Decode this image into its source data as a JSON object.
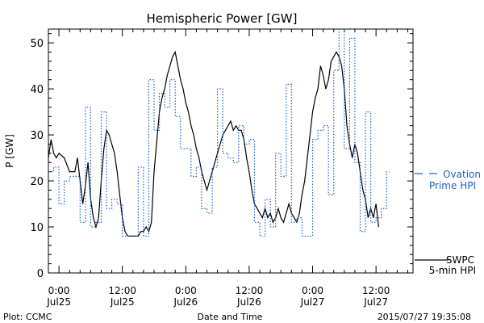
{
  "chart_data": {
    "type": "line",
    "title": "Hemispheric Power [GW]",
    "ylabel": "P [GW]",
    "xlabel": "Date and Time",
    "ylim": [
      0,
      53
    ],
    "yticks": [
      0,
      10,
      20,
      30,
      40,
      50
    ],
    "x_unit": "hours since 2015-07-24 22:00",
    "xlim": [
      0,
      69
    ],
    "xticks": [
      {
        "x": 2,
        "time": "0:00",
        "date": "Jul25"
      },
      {
        "x": 14,
        "time": "12:00",
        "date": "Jul25"
      },
      {
        "x": 26,
        "time": "0:00",
        "date": "Jul26"
      },
      {
        "x": 38,
        "time": "12:00",
        "date": "Jul26"
      },
      {
        "x": 50,
        "time": "0:00",
        "date": "Jul27"
      },
      {
        "x": 62,
        "time": "12:00",
        "date": "Jul27"
      }
    ],
    "series": [
      {
        "name": "SWPC 5-min HPI",
        "style": "solid",
        "color": "#000000",
        "points": [
          [
            0,
            25
          ],
          [
            0.5,
            29
          ],
          [
            1,
            26
          ],
          [
            1.5,
            25
          ],
          [
            2,
            26
          ],
          [
            3,
            25
          ],
          [
            4,
            22
          ],
          [
            5,
            22
          ],
          [
            5.5,
            25
          ],
          [
            6,
            20
          ],
          [
            6.5,
            15
          ],
          [
            7,
            19
          ],
          [
            7.5,
            24
          ],
          [
            8,
            16
          ],
          [
            8.5,
            12
          ],
          [
            9,
            10
          ],
          [
            9.5,
            12
          ],
          [
            10,
            20
          ],
          [
            10.5,
            27
          ],
          [
            11,
            31
          ],
          [
            11.5,
            30
          ],
          [
            12,
            28
          ],
          [
            12.5,
            26
          ],
          [
            13,
            22
          ],
          [
            13.5,
            17
          ],
          [
            14,
            12
          ],
          [
            14.5,
            9
          ],
          [
            15,
            8
          ],
          [
            16,
            8
          ],
          [
            17,
            8
          ],
          [
            17.5,
            9
          ],
          [
            18,
            9
          ],
          [
            18.5,
            10
          ],
          [
            19,
            9
          ],
          [
            19.5,
            11
          ],
          [
            20,
            22
          ],
          [
            21,
            35
          ],
          [
            21.5,
            38
          ],
          [
            22,
            40
          ],
          [
            22.5,
            43
          ],
          [
            23,
            45
          ],
          [
            23.5,
            47
          ],
          [
            24,
            48
          ],
          [
            24.5,
            45
          ],
          [
            25,
            42
          ],
          [
            25.5,
            40
          ],
          [
            26,
            37
          ],
          [
            26.5,
            35
          ],
          [
            27,
            32
          ],
          [
            27.5,
            30
          ],
          [
            28,
            27
          ],
          [
            28.5,
            25
          ],
          [
            29,
            22
          ],
          [
            29.5,
            20
          ],
          [
            30,
            18
          ],
          [
            30.5,
            20
          ],
          [
            31,
            22
          ],
          [
            31.5,
            24
          ],
          [
            32,
            26
          ],
          [
            32.5,
            28
          ],
          [
            33,
            30
          ],
          [
            33.5,
            31
          ],
          [
            34,
            32
          ],
          [
            34.5,
            33
          ],
          [
            35,
            31
          ],
          [
            35.5,
            32
          ],
          [
            36,
            31
          ],
          [
            36.5,
            31
          ],
          [
            37,
            29
          ],
          [
            37.5,
            25
          ],
          [
            38,
            22
          ],
          [
            38.5,
            18
          ],
          [
            39,
            15
          ],
          [
            39.5,
            14
          ],
          [
            40,
            13
          ],
          [
            40.5,
            12
          ],
          [
            41,
            14
          ],
          [
            41.5,
            12
          ],
          [
            42,
            13
          ],
          [
            42.5,
            11
          ],
          [
            43,
            12
          ],
          [
            43.5,
            14
          ],
          [
            44,
            12
          ],
          [
            44.5,
            11
          ],
          [
            45,
            13
          ],
          [
            45.5,
            15
          ],
          [
            46,
            13
          ],
          [
            46.5,
            12
          ],
          [
            47,
            11
          ],
          [
            47.5,
            13
          ],
          [
            48,
            17
          ],
          [
            48.5,
            20
          ],
          [
            49,
            25
          ],
          [
            49.5,
            30
          ],
          [
            50,
            35
          ],
          [
            50.5,
            38
          ],
          [
            51,
            40
          ],
          [
            51.5,
            45
          ],
          [
            52,
            43
          ],
          [
            52.5,
            40
          ],
          [
            53,
            42
          ],
          [
            53.5,
            46
          ],
          [
            54,
            47
          ],
          [
            54.5,
            48
          ],
          [
            55,
            47
          ],
          [
            55.5,
            45
          ],
          [
            56,
            40
          ],
          [
            56.5,
            32
          ],
          [
            57,
            28
          ],
          [
            57.5,
            25
          ],
          [
            58,
            28
          ],
          [
            58.5,
            26
          ],
          [
            59,
            22
          ],
          [
            59.5,
            18
          ],
          [
            60,
            16
          ],
          [
            60.5,
            12
          ],
          [
            61,
            14
          ],
          [
            61.5,
            12
          ],
          [
            62,
            15
          ],
          [
            62.5,
            10
          ]
        ]
      },
      {
        "name": "Ovation Prime HPI",
        "style": "dotted-step",
        "color": "#1f5fc0",
        "points": [
          [
            0,
            22
          ],
          [
            1,
            23
          ],
          [
            2,
            15
          ],
          [
            3,
            20
          ],
          [
            4,
            21
          ],
          [
            5,
            21
          ],
          [
            6,
            11
          ],
          [
            7,
            36
          ],
          [
            8,
            10
          ],
          [
            9,
            11
          ],
          [
            10,
            35
          ],
          [
            11,
            14
          ],
          [
            12,
            16
          ],
          [
            13,
            15
          ],
          [
            14,
            8
          ],
          [
            15,
            8
          ],
          [
            16,
            8
          ],
          [
            17,
            23
          ],
          [
            18,
            8
          ],
          [
            19,
            42
          ],
          [
            20,
            31
          ],
          [
            21,
            39
          ],
          [
            22,
            36
          ],
          [
            23,
            42
          ],
          [
            24,
            34
          ],
          [
            25,
            27
          ],
          [
            26,
            27
          ],
          [
            27,
            21
          ],
          [
            28,
            23
          ],
          [
            29,
            14
          ],
          [
            30,
            13
          ],
          [
            31,
            23
          ],
          [
            32,
            40
          ],
          [
            33,
            26
          ],
          [
            34,
            25
          ],
          [
            35,
            24
          ],
          [
            36,
            32
          ],
          [
            37,
            28
          ],
          [
            38,
            29
          ],
          [
            39,
            11
          ],
          [
            40,
            8
          ],
          [
            41,
            16
          ],
          [
            42,
            10
          ],
          [
            43,
            26
          ],
          [
            44,
            21
          ],
          [
            45,
            41
          ],
          [
            46,
            11
          ],
          [
            47,
            12
          ],
          [
            48,
            8
          ],
          [
            49,
            8
          ],
          [
            50,
            29
          ],
          [
            51,
            31
          ],
          [
            52,
            32
          ],
          [
            53,
            17
          ],
          [
            54,
            44
          ],
          [
            55,
            54
          ],
          [
            56,
            27
          ],
          [
            57,
            51
          ],
          [
            58,
            24
          ],
          [
            59,
            9
          ],
          [
            60,
            35
          ],
          [
            61,
            11
          ],
          [
            62,
            12
          ],
          [
            63,
            14
          ],
          [
            64,
            22
          ],
          [
            64.5,
            22
          ]
        ]
      }
    ],
    "legend": [
      {
        "lines": [
          "Ovation",
          "Prime HPI"
        ],
        "color": "#1f5fc0",
        "style": "dashed"
      },
      {
        "lines": [
          "SWPC",
          "5-min HPI"
        ],
        "color": "#000000",
        "style": "solid"
      }
    ]
  },
  "footer": {
    "left": "Plot: CCMC",
    "center": "Date and Time",
    "right": "2015/07/27 19:35:08"
  }
}
